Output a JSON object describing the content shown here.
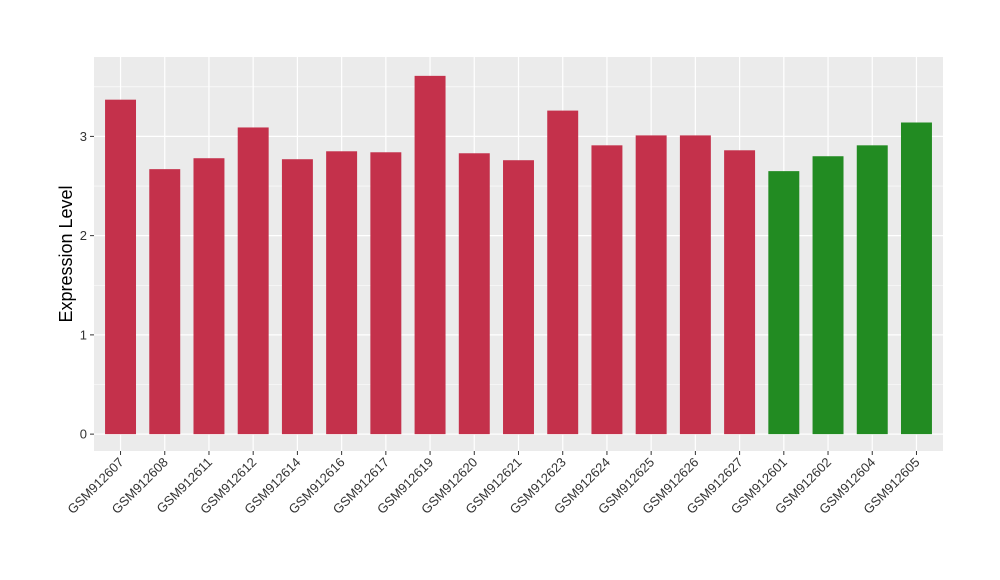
{
  "chart_data": {
    "type": "bar",
    "title": "",
    "xlabel": "",
    "ylabel": "Expression Level",
    "ylim": [
      -0.17,
      3.8
    ],
    "yticks": [
      0,
      1,
      2,
      3
    ],
    "grid": true,
    "legend": "none",
    "colors": {
      "group_a": "#C4314B",
      "group_b": "#228B22",
      "panel": "#EBEBEB",
      "grid": "#FFFFFF"
    },
    "categories": [
      "GSM912607",
      "GSM912608",
      "GSM912611",
      "GSM912612",
      "GSM912614",
      "GSM912616",
      "GSM912617",
      "GSM912619",
      "GSM912620",
      "GSM912621",
      "GSM912623",
      "GSM912624",
      "GSM912625",
      "GSM912626",
      "GSM912627",
      "GSM912601",
      "GSM912602",
      "GSM912604",
      "GSM912605"
    ],
    "values": [
      3.37,
      2.67,
      2.78,
      3.09,
      2.77,
      2.85,
      2.84,
      3.61,
      2.83,
      2.76,
      3.26,
      2.91,
      3.01,
      3.01,
      2.86,
      2.65,
      2.8,
      2.91,
      3.14
    ],
    "groups": [
      "a",
      "a",
      "a",
      "a",
      "a",
      "a",
      "a",
      "a",
      "a",
      "a",
      "a",
      "a",
      "a",
      "a",
      "a",
      "b",
      "b",
      "b",
      "b"
    ]
  }
}
